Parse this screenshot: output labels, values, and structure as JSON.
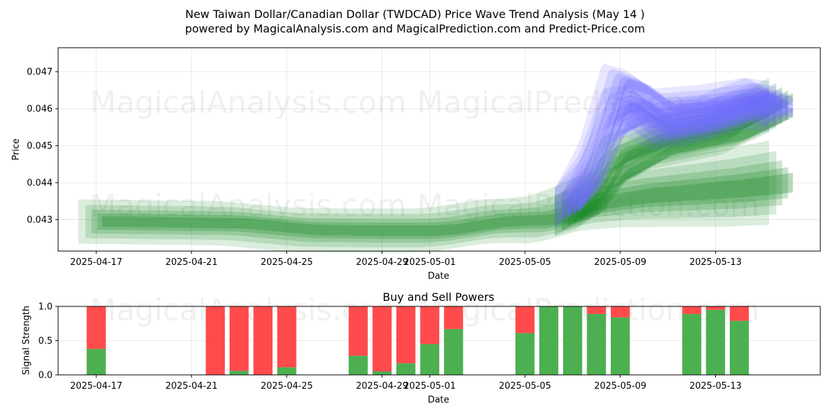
{
  "chart_data": [
    {
      "type": "area",
      "title": "New Taiwan Dollar/Canadian Dollar (TWDCAD) Price Wave Trend Analysis (May 14 )",
      "subtitle": "powered by MagicalAnalysis.com and MagicalPrediction.com and Predict-Price.com",
      "xlabel": "Date",
      "ylabel": "Price",
      "x_ticks": [
        "2025-04-17",
        "2025-04-21",
        "2025-04-25",
        "2025-04-29",
        "2025-05-01",
        "2025-05-05",
        "2025-05-09",
        "2025-05-13"
      ],
      "y_ticks": [
        "0.043",
        "0.044",
        "0.045",
        "0.046",
        "0.047"
      ],
      "ylim": [
        0.04215,
        0.04765
      ],
      "x_range_days": [
        -1.6,
        30.4
      ],
      "grid": true,
      "watermarks": [
        "MagicalAnalysis.com",
        "MagicalPrediction.com"
      ],
      "series": [
        {
          "color": "#1e8c2a",
          "x_days": [
            0,
            6,
            9,
            12,
            14,
            15,
            17,
            19,
            20,
            21,
            23,
            25,
            27,
            29
          ],
          "values": [
            0.04295,
            0.0429,
            0.04272,
            0.0427,
            0.0427,
            0.04275,
            0.04295,
            0.043,
            0.0432,
            0.04345,
            0.04365,
            0.04375,
            0.04385,
            0.044
          ]
        },
        {
          "color": "#1e8c2a",
          "x_days": [
            20,
            21,
            22,
            24,
            27,
            29
          ],
          "values": [
            0.0431,
            0.0433,
            0.0442,
            0.0449,
            0.0453,
            0.0459
          ]
        },
        {
          "color": "#1e8c2a",
          "x_days": [
            20,
            21,
            22,
            24,
            27,
            29
          ],
          "values": [
            0.0431,
            0.0435,
            0.0447,
            0.0452,
            0.0456,
            0.0463
          ]
        },
        {
          "color": "#6f6cff",
          "x_days": [
            20,
            21,
            22,
            23,
            24,
            26,
            28,
            29
          ],
          "values": [
            0.0433,
            0.0445,
            0.0467,
            0.0465,
            0.046,
            0.0461,
            0.0463,
            0.0462
          ]
        },
        {
          "color": "#6f6cff",
          "x_days": [
            20,
            21,
            22,
            23,
            24,
            26,
            28,
            29
          ],
          "values": [
            0.0433,
            0.0442,
            0.046,
            0.0461,
            0.0456,
            0.0458,
            0.0463,
            0.046
          ]
        },
        {
          "color": "#6f6cff",
          "x_days": [
            20,
            21,
            22,
            23,
            24,
            26,
            28,
            29
          ],
          "values": [
            0.0433,
            0.044,
            0.0455,
            0.0458,
            0.0454,
            0.0456,
            0.046,
            0.0459
          ]
        }
      ]
    },
    {
      "type": "bar",
      "title": "Buy and Sell Powers",
      "xlabel": "Date",
      "ylabel": "Signal Strength",
      "y_ticks": [
        "0.0",
        "0.5",
        "1.0"
      ],
      "x_ticks": [
        "2025-04-17",
        "2025-04-21",
        "2025-04-25",
        "2025-04-29",
        "2025-05-01",
        "2025-05-05",
        "2025-05-09",
        "2025-05-13"
      ],
      "ylim": [
        0,
        1
      ],
      "x_range_days": [
        -1.6,
        30.4
      ],
      "buy_color": "#4caf50",
      "sell_color": "#ff4b4b",
      "series": [
        {
          "name": "buy",
          "x_days": [
            0,
            5,
            6,
            7,
            8,
            11,
            12,
            13,
            14,
            15,
            18,
            19,
            20,
            21,
            22,
            25,
            26,
            27
          ],
          "values": [
            0.38,
            0.0,
            0.06,
            0.0,
            0.11,
            0.28,
            0.05,
            0.17,
            0.45,
            0.67,
            0.61,
            1.0,
            1.0,
            0.89,
            0.84,
            0.89,
            0.95,
            0.79
          ]
        },
        {
          "name": "sell",
          "x_days": [
            0,
            5,
            6,
            7,
            8,
            11,
            12,
            13,
            14,
            15,
            18,
            19,
            20,
            21,
            22,
            25,
            26,
            27
          ],
          "values": [
            0.62,
            1.0,
            0.94,
            1.0,
            0.89,
            0.72,
            0.95,
            0.83,
            0.55,
            0.33,
            0.39,
            0.0,
            0.0,
            0.11,
            0.16,
            0.11,
            0.05,
            0.21
          ]
        }
      ]
    }
  ]
}
